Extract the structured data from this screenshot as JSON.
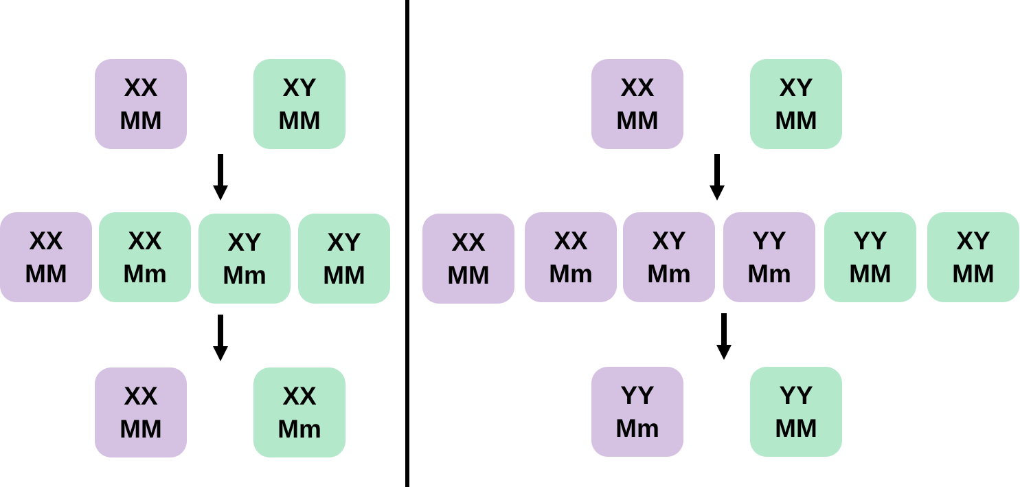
{
  "colors": {
    "purple": "#d5c1e2",
    "green": "#b3e8cb",
    "text": "#000000",
    "divider": "#000000"
  },
  "left": {
    "parents": [
      {
        "sex": "XX",
        "gene": "MM",
        "color": "purple"
      },
      {
        "sex": "XY",
        "gene": "MM",
        "color": "green"
      }
    ],
    "offspring": [
      {
        "sex": "XX",
        "gene": "MM",
        "color": "purple"
      },
      {
        "sex": "XX",
        "gene": "Mm",
        "color": "green"
      },
      {
        "sex": "XY",
        "gene": "Mm",
        "color": "green"
      },
      {
        "sex": "XY",
        "gene": "MM",
        "color": "green"
      }
    ],
    "selected": [
      {
        "sex": "XX",
        "gene": "MM",
        "color": "purple"
      },
      {
        "sex": "XX",
        "gene": "Mm",
        "color": "green"
      }
    ]
  },
  "right": {
    "parents": [
      {
        "sex": "XX",
        "gene": "MM",
        "color": "purple"
      },
      {
        "sex": "XY",
        "gene": "MM",
        "color": "green"
      }
    ],
    "offspring": [
      {
        "sex": "XX",
        "gene": "MM",
        "color": "purple"
      },
      {
        "sex": "XX",
        "gene": "Mm",
        "color": "purple"
      },
      {
        "sex": "XY",
        "gene": "Mm",
        "color": "purple"
      },
      {
        "sex": "YY",
        "gene": "Mm",
        "color": "purple"
      },
      {
        "sex": "YY",
        "gene": "MM",
        "color": "green"
      },
      {
        "sex": "XY",
        "gene": "MM",
        "color": "green"
      }
    ],
    "selected": [
      {
        "sex": "YY",
        "gene": "Mm",
        "color": "purple"
      },
      {
        "sex": "YY",
        "gene": "MM",
        "color": "green"
      }
    ]
  }
}
